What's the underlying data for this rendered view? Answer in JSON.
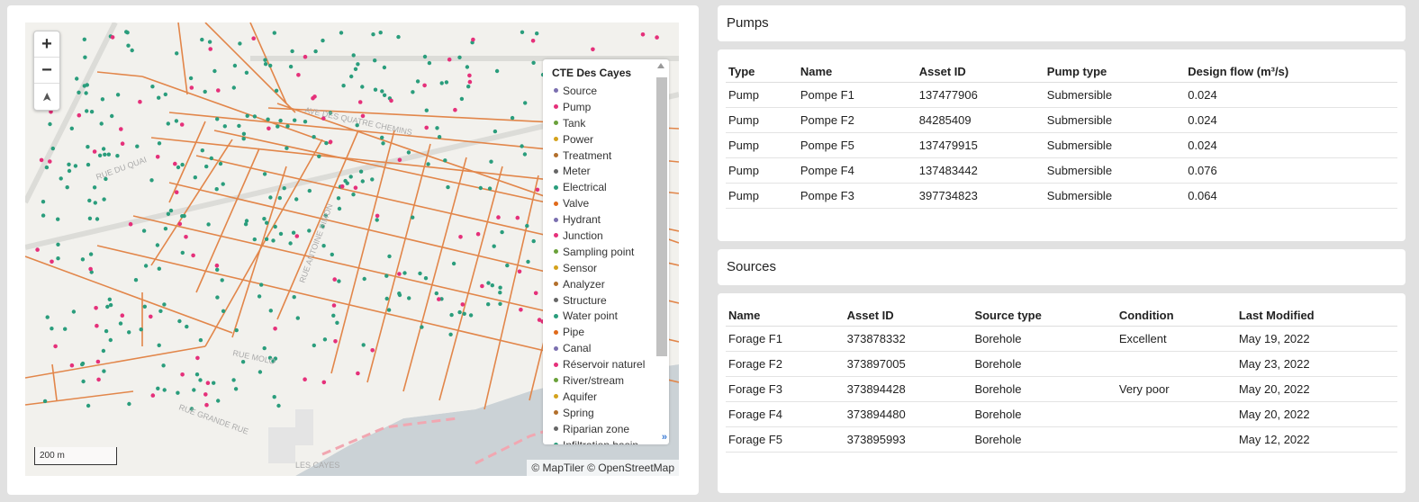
{
  "map": {
    "legend": {
      "title": "CTE Des Cayes",
      "items": [
        {
          "label": "Source",
          "color": "#7b6fb0"
        },
        {
          "label": "Pump",
          "color": "#e5307a"
        },
        {
          "label": "Tank",
          "color": "#6aa13a"
        },
        {
          "label": "Power",
          "color": "#d4a21c"
        },
        {
          "label": "Treatment",
          "color": "#b26f2c"
        },
        {
          "label": "Meter",
          "color": "#666666"
        },
        {
          "label": "Electrical",
          "color": "#2a9d7c"
        },
        {
          "label": "Valve",
          "color": "#e06a1b"
        },
        {
          "label": "Hydrant",
          "color": "#7b6fb0"
        },
        {
          "label": "Junction",
          "color": "#e5307a"
        },
        {
          "label": "Sampling point",
          "color": "#6aa13a"
        },
        {
          "label": "Sensor",
          "color": "#d4a21c"
        },
        {
          "label": "Analyzer",
          "color": "#b26f2c"
        },
        {
          "label": "Structure",
          "color": "#666666"
        },
        {
          "label": "Water point",
          "color": "#2a9d7c"
        },
        {
          "label": "Pipe",
          "color": "#e06a1b"
        },
        {
          "label": "Canal",
          "color": "#7b6fb0"
        },
        {
          "label": "Réservoir naturel",
          "color": "#e5307a"
        },
        {
          "label": "River/stream",
          "color": "#6aa13a"
        },
        {
          "label": "Aquifer",
          "color": "#d4a21c"
        },
        {
          "label": "Spring",
          "color": "#b26f2c"
        },
        {
          "label": "Riparian zone",
          "color": "#666666"
        },
        {
          "label": "Infiltration basin",
          "color": "#2a9d7c"
        }
      ]
    },
    "zoom_in_label": "+",
    "zoom_out_label": "−",
    "compass_label": "➤",
    "scale_label": "200 m",
    "attribution": "© MapTiler © OpenStreetMap",
    "expand_label": "»"
  },
  "pumps": {
    "header": "Pumps",
    "columns": [
      "Type",
      "Name",
      "Asset ID",
      "Pump type",
      "Design flow (m³/s)"
    ],
    "rows": [
      [
        "Pump",
        "Pompe F1",
        "137477906",
        "Submersible",
        "0.024"
      ],
      [
        "Pump",
        "Pompe F2",
        "84285409",
        "Submersible",
        "0.024"
      ],
      [
        "Pump",
        "Pompe F5",
        "137479915",
        "Submersible",
        "0.024"
      ],
      [
        "Pump",
        "Pompe F4",
        "137483442",
        "Submersible",
        "0.076"
      ],
      [
        "Pump",
        "Pompe F3",
        "397734823",
        "Submersible",
        "0.064"
      ]
    ]
  },
  "sources": {
    "header": "Sources",
    "columns": [
      "Name",
      "Asset ID",
      "Source type",
      "Condition",
      "Last Modified"
    ],
    "rows": [
      [
        "Forage F1",
        "373878332",
        "Borehole",
        "Excellent",
        "May 19, 2022"
      ],
      [
        "Forage F2",
        "373897005",
        "Borehole",
        "",
        "May 23, 2022"
      ],
      [
        "Forage F3",
        "373894428",
        "Borehole",
        "Very poor",
        "May 20, 2022"
      ],
      [
        "Forage F4",
        "373894480",
        "Borehole",
        "",
        "May 20, 2022"
      ],
      [
        "Forage F5",
        "373895993",
        "Borehole",
        "",
        "May 12, 2022"
      ]
    ]
  }
}
